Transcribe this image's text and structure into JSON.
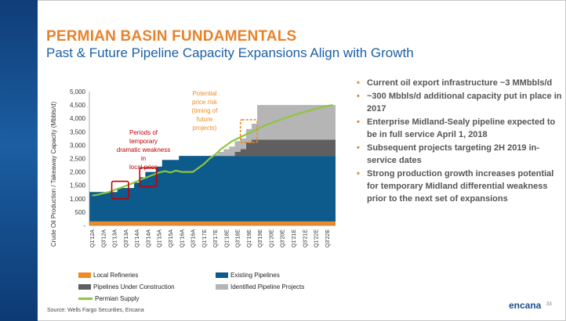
{
  "slide": {
    "title": "PERMIAN BASIN FUNDAMENTALS",
    "subtitle": "Past & Future Pipeline Capacity Expansions Align with Growth",
    "source": "Source: Wells Fargo Securities, Encana",
    "logo": "encana",
    "page_number": "33",
    "accent_color": "#e8822a",
    "brand_color": "#1c5fa6"
  },
  "bullets": [
    "Current oil export infrastructure ~3 MMbbls/d",
    "~300 Mbbls/d additional capacity put in place in 2017",
    "Enterprise Midland-Sealy pipeline expected to be in full service April 1, 2018",
    "Subsequent projects targeting 2H 2019 in-service dates",
    "Strong production growth increases potential for temporary Midland differential weakness prior to the next set of expansions"
  ],
  "annotations": {
    "weakness": "Periods of temporary dramatic weakness in local price",
    "future": "Potential price risk (timing of future projects)"
  },
  "legend": {
    "local_refineries": "Local Refineries",
    "existing_pipelines": "Existing Pipelines",
    "under_construction": "Pipelines Under Construction",
    "identified": "Identified Pipeline Projects",
    "supply": "Permian Supply"
  },
  "chart_data": {
    "type": "area",
    "ylabel": "Crude Oil Production / Takeaway Capacity (Mbbls/d)",
    "xlabel": "",
    "ylim": [
      0,
      5000
    ],
    "yticks": [
      0,
      500,
      1000,
      1500,
      2000,
      2500,
      3000,
      3500,
      4000,
      4500,
      5000
    ],
    "ytick_labels": [
      "-",
      "500",
      "1,000",
      "1,500",
      "2,000",
      "2,500",
      "3,000",
      "3,500",
      "4,000",
      "4,500",
      "5,000"
    ],
    "grid": false,
    "legend_position": "bottom",
    "categories": [
      "Q1'12A",
      "Q2'12A",
      "Q3'12A",
      "Q4'12A",
      "Q1'13A",
      "Q2'13A",
      "Q3'13A",
      "Q4'13A",
      "Q1'14A",
      "Q2'14A",
      "Q3'14A",
      "Q4'14A",
      "Q1'15A",
      "Q2'15A",
      "Q3'15A",
      "Q4'15A",
      "Q1'16A",
      "Q2'16A",
      "Q3'16A",
      "Q4'16A",
      "Q1'17E",
      "Q2'17E",
      "Q3'17E",
      "Q4'17E",
      "Q1'18E",
      "Q2'18E",
      "Q3'18E",
      "Q4'18E",
      "Q1'19E",
      "Q2'19E",
      "Q3'19E",
      "Q4'19E",
      "Q1'20E",
      "Q2'20E",
      "Q3'20E",
      "Q4'20E",
      "Q1'21E",
      "Q2'21E",
      "Q3'21E",
      "Q4'21E",
      "Q1'22E",
      "Q2'22E",
      "Q3'22E",
      "Q4'22E"
    ],
    "tick_labels": [
      "Q1'12A",
      "Q3'12A",
      "Q1'13A",
      "Q3'13A",
      "Q1'14A",
      "Q3'14A",
      "Q1'15A",
      "Q3'15A",
      "Q1'16A",
      "Q3'16A",
      "Q1'17E",
      "Q3'17E",
      "Q1'18E",
      "Q3'18E",
      "Q1'19E",
      "Q3'19E",
      "Q1'20E",
      "Q3'20E",
      "Q1'21E",
      "Q3'21E",
      "Q1'22E",
      "Q3'22E"
    ],
    "series": [
      {
        "name": "Local Refineries",
        "color": "#f08a24",
        "stacked": true,
        "values": [
          150,
          150,
          150,
          150,
          150,
          150,
          150,
          150,
          150,
          150,
          150,
          150,
          150,
          150,
          150,
          150,
          150,
          150,
          150,
          150,
          150,
          150,
          150,
          150,
          150,
          150,
          150,
          150,
          150,
          150,
          150,
          150,
          150,
          150,
          150,
          150,
          150,
          150,
          150,
          150,
          150,
          150,
          150,
          150
        ]
      },
      {
        "name": "Existing Pipelines",
        "color": "#0d5a8c",
        "stacked": true,
        "values": [
          1100,
          1100,
          1100,
          1100,
          1100,
          1250,
          1250,
          1250,
          1450,
          1650,
          1850,
          1850,
          2050,
          2300,
          2300,
          2300,
          2450,
          2450,
          2450,
          2450,
          2450,
          2450,
          2450,
          2450,
          2450,
          2450,
          2450,
          2450,
          2450,
          2450,
          2450,
          2450,
          2450,
          2450,
          2450,
          2450,
          2450,
          2450,
          2450,
          2450,
          2450,
          2450,
          2450,
          2450
        ]
      },
      {
        "name": "Pipelines Under Construction",
        "color": "#5f5f5f",
        "stacked": true,
        "values": [
          0,
          0,
          0,
          0,
          0,
          0,
          0,
          0,
          0,
          0,
          0,
          0,
          0,
          0,
          0,
          0,
          0,
          0,
          0,
          0,
          0,
          0,
          0,
          0,
          0,
          0,
          150,
          250,
          500,
          600,
          600,
          600,
          600,
          600,
          600,
          600,
          600,
          600,
          600,
          600,
          600,
          600,
          600,
          600
        ]
      },
      {
        "name": "Identified Pipeline Projects",
        "color": "#b5b5b5",
        "stacked": true,
        "values": [
          0,
          0,
          0,
          0,
          0,
          0,
          0,
          0,
          0,
          0,
          0,
          0,
          0,
          0,
          0,
          0,
          0,
          0,
          0,
          0,
          0,
          0,
          50,
          150,
          250,
          350,
          400,
          400,
          500,
          600,
          1300,
          1300,
          1300,
          1300,
          1300,
          1300,
          1300,
          1300,
          1300,
          1300,
          1300,
          1300,
          1300,
          1300
        ]
      },
      {
        "name": "Permian Supply",
        "color": "#8dc63f",
        "type": "line",
        "values": [
          1120,
          1150,
          1200,
          1250,
          1330,
          1400,
          1480,
          1560,
          1650,
          1740,
          1820,
          1900,
          1980,
          2030,
          1980,
          2050,
          2000,
          2000,
          2000,
          2150,
          2300,
          2500,
          2650,
          2850,
          3000,
          3150,
          3250,
          3350,
          3450,
          3550,
          3650,
          3750,
          3820,
          3900,
          3980,
          4050,
          4120,
          4180,
          4240,
          4300,
          4360,
          4410,
          4460,
          4500
        ]
      }
    ]
  }
}
